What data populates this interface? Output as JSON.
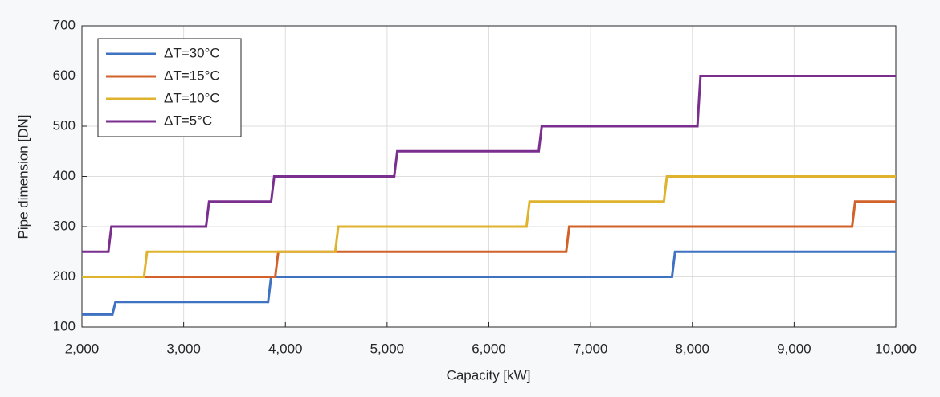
{
  "chart_data": {
    "type": "line",
    "step": true,
    "xlabel": "Capacity [kW]",
    "ylabel": "Pipe dimension [DN]",
    "xlim": [
      2000,
      10000
    ],
    "ylim": [
      100,
      700
    ],
    "xticks": [
      {
        "value": 2000,
        "label": "2,000"
      },
      {
        "value": 3000,
        "label": "3,000"
      },
      {
        "value": 4000,
        "label": "4,000"
      },
      {
        "value": 5000,
        "label": "5,000"
      },
      {
        "value": 6000,
        "label": "6,000"
      },
      {
        "value": 7000,
        "label": "7,000"
      },
      {
        "value": 8000,
        "label": "8,000"
      },
      {
        "value": 9000,
        "label": "9,000"
      },
      {
        "value": 10000,
        "label": "10,000"
      }
    ],
    "yticks": [
      100,
      200,
      300,
      400,
      500,
      600,
      700
    ],
    "grid": true,
    "legend": "upper left",
    "series": [
      {
        "name": "ΔT=30°C",
        "color": "#3f72c0",
        "x": [
          2000,
          2300,
          2330,
          3830,
          3860,
          7800,
          7830,
          10000
        ],
        "values": [
          125,
          125,
          150,
          150,
          200,
          200,
          250,
          250
        ]
      },
      {
        "name": "ΔT=15°C",
        "color": "#d2622a",
        "x": [
          2000,
          3900,
          3930,
          6760,
          6790,
          9570,
          9600,
          10000
        ],
        "values": [
          200,
          200,
          250,
          250,
          300,
          300,
          350,
          350
        ]
      },
      {
        "name": "ΔT=10°C",
        "color": "#e0b32e",
        "x": [
          2000,
          2610,
          2640,
          4490,
          4520,
          6370,
          6400,
          7720,
          7750,
          10000
        ],
        "values": [
          200,
          200,
          250,
          250,
          300,
          300,
          350,
          350,
          400,
          400
        ]
      },
      {
        "name": "ΔT=5°C",
        "color": "#7a2f8f",
        "x": [
          2000,
          2260,
          2290,
          3220,
          3250,
          3860,
          3890,
          5070,
          5100,
          6490,
          6520,
          8050,
          8080,
          10000
        ],
        "values": [
          250,
          250,
          300,
          300,
          350,
          350,
          400,
          400,
          450,
          450,
          500,
          500,
          600,
          600
        ]
      }
    ]
  }
}
